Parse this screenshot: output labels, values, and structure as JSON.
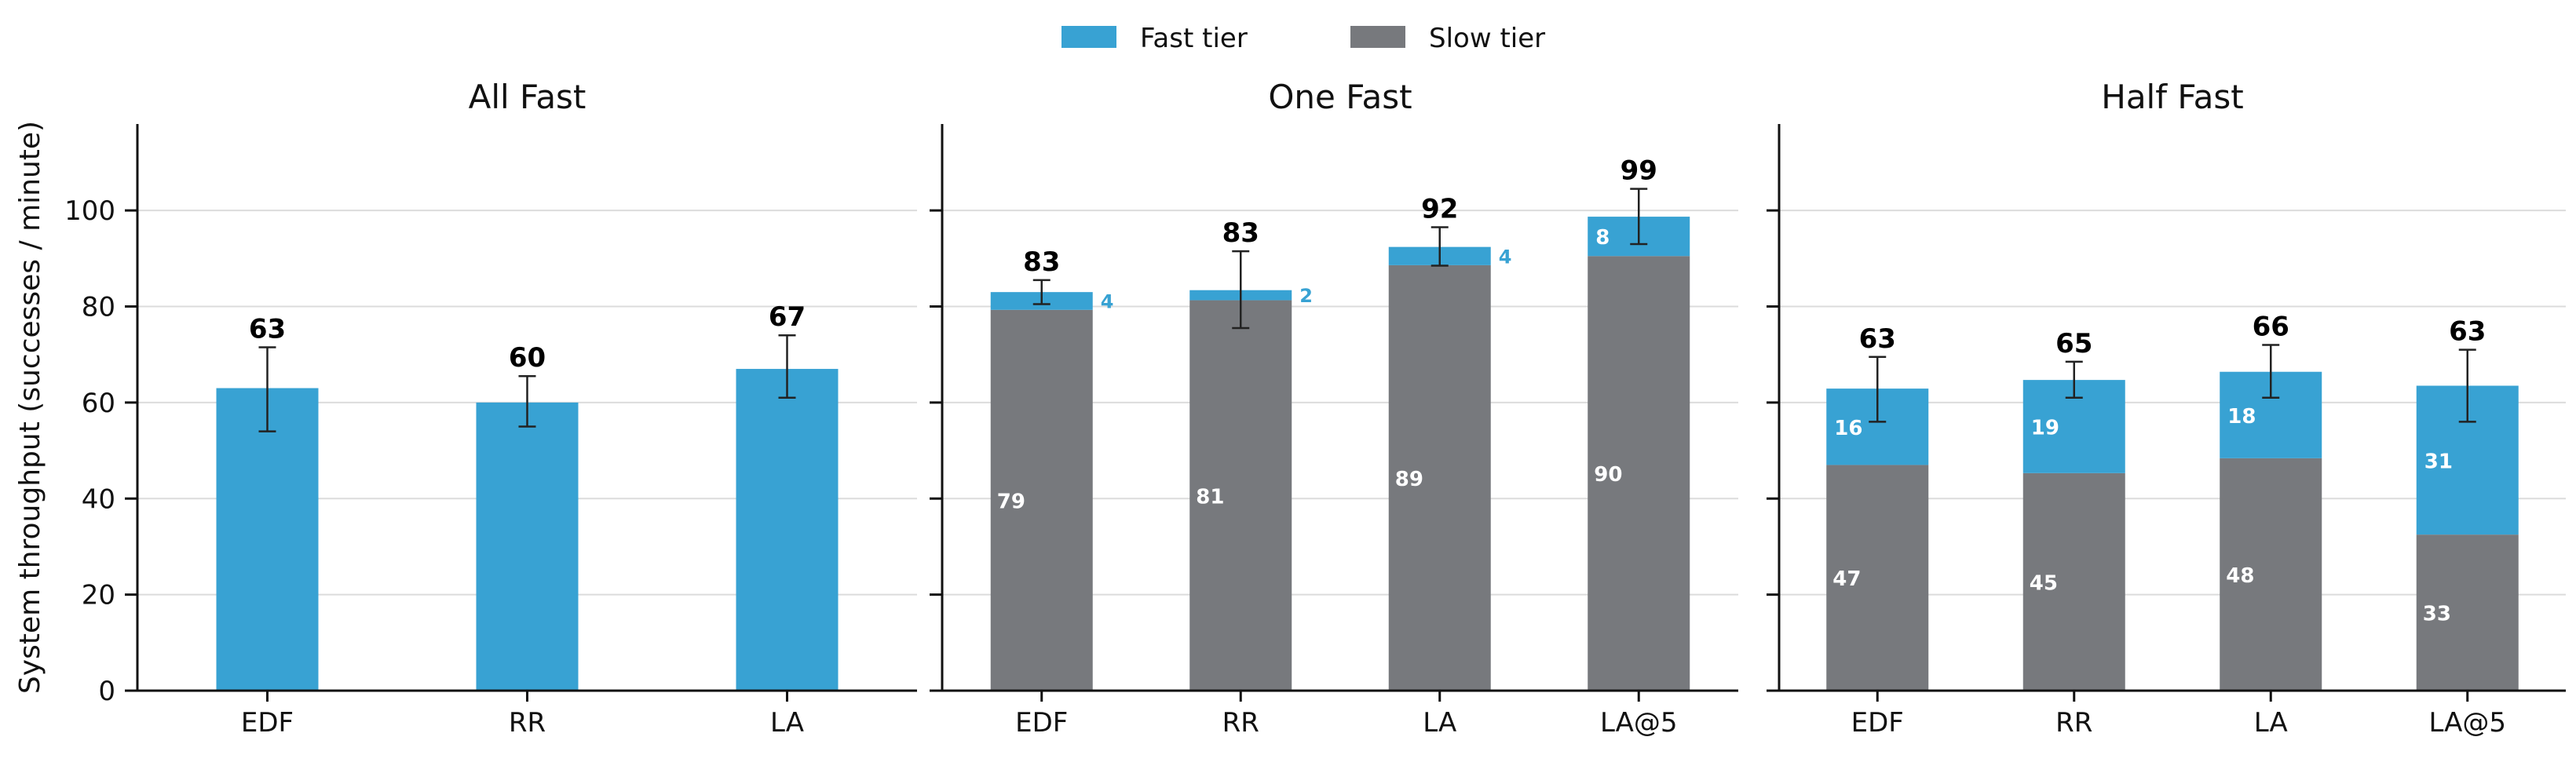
{
  "legend": [
    {
      "name": "Fast tier",
      "color": "#38a2d3"
    },
    {
      "name": "Slow tier",
      "color": "#77797d"
    }
  ],
  "ylabel": "System throughput (successes / minute)",
  "chart_data": [
    {
      "type": "bar",
      "title": "All Fast",
      "categories": [
        "EDF",
        "RR",
        "LA"
      ],
      "stacked": true,
      "series": [
        {
          "name": "Slow tier",
          "values": [
            0,
            0,
            0
          ]
        },
        {
          "name": "Fast tier",
          "values": [
            63,
            60,
            67
          ]
        }
      ],
      "totals": [
        63,
        60,
        67
      ],
      "error": [
        [
          54,
          71.5
        ],
        [
          55,
          65.5
        ],
        [
          61,
          74
        ]
      ],
      "segment_labels": {
        "slow": [
          null,
          null,
          null
        ],
        "fast": [
          null,
          null,
          null
        ]
      },
      "ylim": [
        0,
        118
      ],
      "yticks": [
        0,
        20,
        40,
        60,
        80,
        100
      ],
      "ylabel": "System throughput (successes / minute)",
      "grid": true
    },
    {
      "type": "bar",
      "title": "One Fast",
      "categories": [
        "EDF",
        "RR",
        "LA",
        "LA@5"
      ],
      "stacked": true,
      "series": [
        {
          "name": "Slow tier",
          "values": [
            79.3,
            81.3,
            88.6,
            90.5
          ]
        },
        {
          "name": "Fast tier",
          "values": [
            3.7,
            2.1,
            3.8,
            8.2
          ]
        }
      ],
      "totals": [
        83,
        83,
        92,
        99
      ],
      "error": [
        [
          80.5,
          85.5
        ],
        [
          75.5,
          91.5
        ],
        [
          88.5,
          96.5
        ],
        [
          93,
          104.5
        ]
      ],
      "segment_labels": {
        "slow": [
          "79",
          "81",
          "89",
          "90"
        ],
        "fast": [
          "4",
          "2",
          "4",
          "8"
        ]
      },
      "fast_label_outside": [
        true,
        true,
        true,
        false
      ],
      "ylim": [
        0,
        118
      ],
      "yticks": [
        0,
        20,
        40,
        60,
        80,
        100
      ],
      "grid": true
    },
    {
      "type": "bar",
      "title": "Half Fast",
      "categories": [
        "EDF",
        "RR",
        "LA",
        "LA@5"
      ],
      "stacked": true,
      "series": [
        {
          "name": "Slow tier",
          "values": [
            47,
            45.3,
            48.4,
            32.5
          ]
        },
        {
          "name": "Fast tier",
          "values": [
            15.9,
            19.4,
            18,
            31
          ]
        }
      ],
      "totals": [
        63,
        65,
        66,
        63
      ],
      "error": [
        [
          56,
          69.5
        ],
        [
          61,
          68.5
        ],
        [
          61,
          72
        ],
        [
          56,
          71
        ]
      ],
      "segment_labels": {
        "slow": [
          "47",
          "45",
          "48",
          "33"
        ],
        "fast": [
          "16",
          "19",
          "18",
          "31"
        ]
      },
      "fast_label_outside": [
        false,
        false,
        false,
        false
      ],
      "ylim": [
        0,
        118
      ],
      "yticks": [
        0,
        20,
        40,
        60,
        80,
        100
      ],
      "grid": true
    }
  ]
}
